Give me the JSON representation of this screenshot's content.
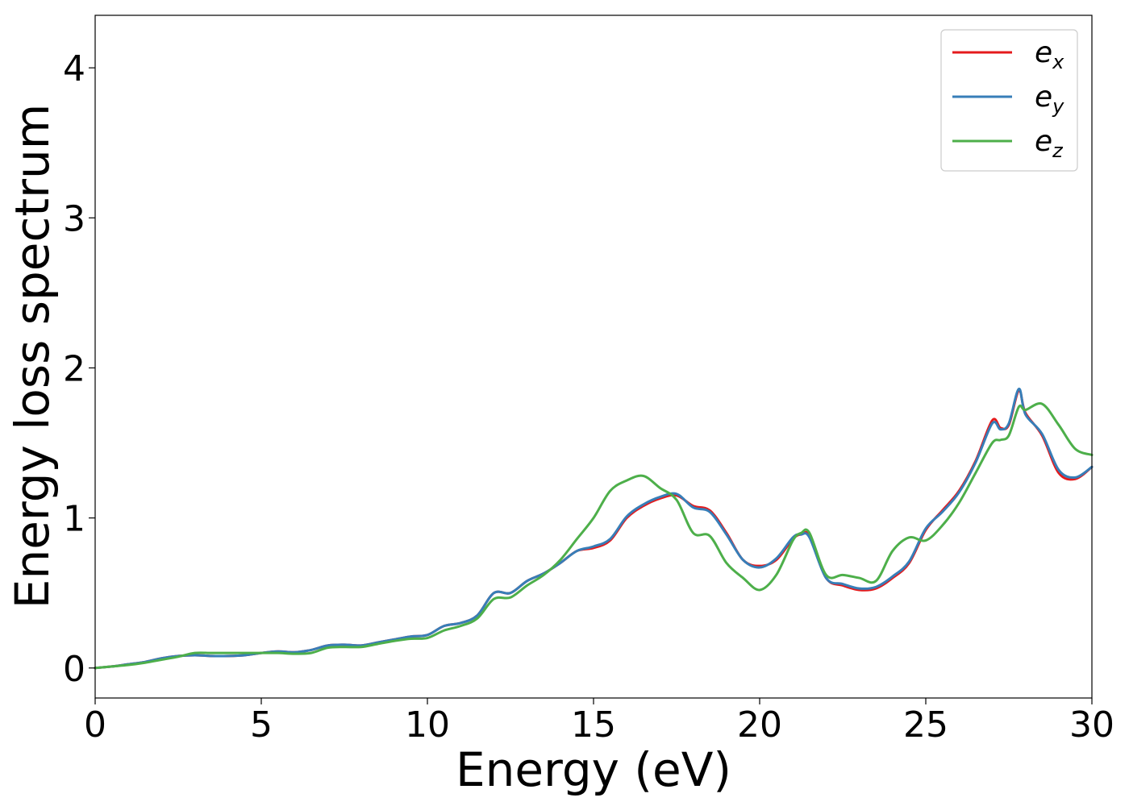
{
  "chart_data": {
    "type": "line",
    "title": "",
    "xlabel": "Energy (eV)",
    "ylabel": "Energy loss spectrum",
    "xlim": [
      0,
      30
    ],
    "ylim": [
      -0.2,
      4.35
    ],
    "xticks": [
      0,
      5,
      10,
      15,
      20,
      25,
      30
    ],
    "yticks": [
      0,
      1,
      2,
      3,
      4
    ],
    "grid": false,
    "legend_position": "top-right",
    "series": [
      {
        "name_main": "e",
        "name_sub": "x",
        "color": "#e41a1c",
        "x": [
          0,
          0.5,
          1,
          1.5,
          2,
          2.5,
          3,
          3.5,
          4,
          4.5,
          5,
          5.5,
          6,
          6.5,
          7,
          7.5,
          8,
          8.5,
          9,
          9.5,
          10,
          10.5,
          11,
          11.5,
          12,
          12.5,
          13,
          13.5,
          14,
          14.5,
          15,
          15.5,
          16,
          16.5,
          17,
          17.5,
          18,
          18.5,
          19,
          19.5,
          20,
          20.5,
          21,
          21.25,
          21.5,
          22,
          22.5,
          23,
          23.5,
          24,
          24.5,
          25,
          25.5,
          26,
          26.5,
          27,
          27.25,
          27.5,
          27.8,
          28,
          28.5,
          29,
          29.5,
          30
        ],
        "y": [
          0,
          0.01,
          0.025,
          0.04,
          0.065,
          0.08,
          0.085,
          0.08,
          0.08,
          0.085,
          0.1,
          0.11,
          0.105,
          0.12,
          0.15,
          0.155,
          0.15,
          0.17,
          0.19,
          0.21,
          0.22,
          0.28,
          0.3,
          0.35,
          0.5,
          0.5,
          0.58,
          0.63,
          0.7,
          0.78,
          0.8,
          0.85,
          1.0,
          1.08,
          1.13,
          1.15,
          1.08,
          1.05,
          0.9,
          0.72,
          0.68,
          0.72,
          0.86,
          0.89,
          0.88,
          0.6,
          0.55,
          0.52,
          0.53,
          0.6,
          0.7,
          0.92,
          1.05,
          1.18,
          1.38,
          1.65,
          1.6,
          1.62,
          1.85,
          1.7,
          1.55,
          1.3,
          1.26,
          1.34
        ]
      },
      {
        "name_main": "e",
        "name_sub": "y",
        "color": "#377eb8",
        "x": [
          0,
          0.5,
          1,
          1.5,
          2,
          2.5,
          3,
          3.5,
          4,
          4.5,
          5,
          5.5,
          6,
          6.5,
          7,
          7.5,
          8,
          8.5,
          9,
          9.5,
          10,
          10.5,
          11,
          11.5,
          12,
          12.5,
          13,
          13.5,
          14,
          14.5,
          15,
          15.5,
          16,
          16.5,
          17,
          17.5,
          18,
          18.5,
          19,
          19.5,
          20,
          20.5,
          21,
          21.25,
          21.5,
          22,
          22.5,
          23,
          23.5,
          24,
          24.5,
          25,
          25.5,
          26,
          26.5,
          27,
          27.25,
          27.5,
          27.8,
          28,
          28.5,
          29,
          29.5,
          30
        ],
        "y": [
          0,
          0.01,
          0.025,
          0.04,
          0.065,
          0.08,
          0.085,
          0.08,
          0.08,
          0.085,
          0.1,
          0.11,
          0.105,
          0.12,
          0.15,
          0.155,
          0.15,
          0.17,
          0.19,
          0.21,
          0.22,
          0.28,
          0.3,
          0.35,
          0.5,
          0.5,
          0.58,
          0.63,
          0.7,
          0.78,
          0.81,
          0.86,
          1.01,
          1.09,
          1.14,
          1.16,
          1.07,
          1.04,
          0.89,
          0.72,
          0.67,
          0.73,
          0.87,
          0.89,
          0.87,
          0.6,
          0.56,
          0.53,
          0.54,
          0.61,
          0.71,
          0.93,
          1.04,
          1.17,
          1.37,
          1.63,
          1.59,
          1.63,
          1.86,
          1.69,
          1.56,
          1.32,
          1.27,
          1.34
        ]
      },
      {
        "name_main": "e",
        "name_sub": "z",
        "color": "#4daf4a",
        "x": [
          0,
          0.5,
          1,
          1.5,
          2,
          2.5,
          3,
          3.5,
          4,
          4.5,
          5,
          5.5,
          6,
          6.5,
          7,
          7.5,
          8,
          8.5,
          9,
          9.5,
          10,
          10.5,
          11,
          11.5,
          12,
          12.5,
          13,
          13.5,
          14,
          14.5,
          15,
          15.5,
          16,
          16.5,
          17,
          17.5,
          18,
          18.5,
          19,
          19.5,
          20,
          20.5,
          21,
          21.25,
          21.5,
          22,
          22.5,
          23,
          23.5,
          24,
          24.5,
          25,
          25.5,
          26,
          26.5,
          27,
          27.25,
          27.5,
          27.8,
          28,
          28.5,
          29,
          29.5,
          30
        ],
        "y": [
          0,
          0.01,
          0.02,
          0.035,
          0.055,
          0.075,
          0.1,
          0.1,
          0.1,
          0.1,
          0.1,
          0.1,
          0.095,
          0.1,
          0.135,
          0.14,
          0.14,
          0.16,
          0.18,
          0.195,
          0.2,
          0.25,
          0.28,
          0.33,
          0.46,
          0.47,
          0.55,
          0.62,
          0.72,
          0.86,
          1.0,
          1.18,
          1.25,
          1.28,
          1.2,
          1.12,
          0.9,
          0.88,
          0.7,
          0.6,
          0.52,
          0.62,
          0.85,
          0.9,
          0.9,
          0.62,
          0.62,
          0.6,
          0.58,
          0.78,
          0.87,
          0.85,
          0.95,
          1.1,
          1.3,
          1.5,
          1.52,
          1.55,
          1.74,
          1.72,
          1.76,
          1.62,
          1.46,
          1.42
        ]
      }
    ]
  }
}
